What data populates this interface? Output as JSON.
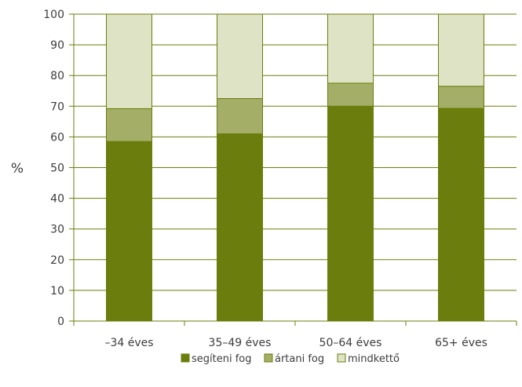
{
  "chart_data": {
    "type": "bar",
    "stacked": true,
    "categories": [
      "–34 éves",
      "35–49 éves",
      "50–64 éves",
      "65+ éves"
    ],
    "series": [
      {
        "name": "segíteni fog",
        "values": [
          58.5,
          61,
          70,
          69.3
        ],
        "color": "#6b7d0c"
      },
      {
        "name": "ártani fog",
        "values": [
          10.7,
          11.5,
          7.5,
          7.2
        ],
        "color": "#a4ae66"
      },
      {
        "name": "mindkettő",
        "values": [
          30.8,
          27.5,
          22.5,
          23.5
        ],
        "color": "#dfe3c5"
      }
    ],
    "title": "",
    "xlabel": "",
    "ylabel": "%",
    "ylim": [
      0,
      100
    ],
    "yticks": [
      0,
      10,
      20,
      30,
      40,
      50,
      60,
      70,
      80,
      90,
      100
    ],
    "grid": true,
    "legend": "bottom"
  }
}
